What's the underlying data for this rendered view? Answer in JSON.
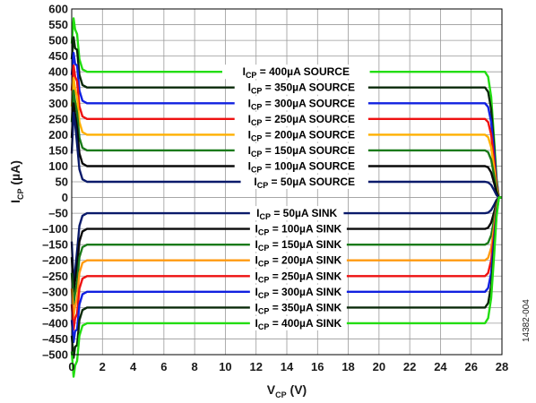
{
  "figure_id": "14382-004",
  "chart_data": {
    "type": "line",
    "xlabel": {
      "main": "V",
      "sub": "CP",
      "unit": " (V)"
    },
    "ylabel": {
      "main": "I",
      "sub": "CP",
      "unit": " (µA)"
    },
    "xlim": [
      0,
      28
    ],
    "ylim": [
      -500,
      600
    ],
    "xticks": [
      0,
      2,
      4,
      6,
      8,
      10,
      12,
      14,
      16,
      18,
      20,
      22,
      24,
      26,
      28
    ],
    "yticks": [
      600,
      550,
      500,
      450,
      400,
      350,
      300,
      250,
      200,
      150,
      100,
      50,
      0,
      -50,
      -100,
      -150,
      -200,
      -250,
      -300,
      -350,
      -400,
      -450,
      -500
    ],
    "ytick_labels": [
      "600",
      "550",
      "500",
      "450",
      "400",
      "350",
      "300",
      "250",
      "200",
      "150",
      "100",
      "50",
      "0",
      "–50",
      "–100",
      "–150",
      "–200",
      "–250",
      "–300",
      "–350",
      "–400",
      "–450",
      "–500"
    ],
    "grid": true,
    "series": [
      {
        "name": "ICP = 400µA SOURCE",
        "label_main": "I",
        "label_sub": "CP",
        "label_rest": " = 400µA SOURCE",
        "color": "#22dd11",
        "level": 400,
        "peak": 570,
        "label_x": [
          9.8,
          19.4
        ]
      },
      {
        "name": "ICP = 350µA SOURCE",
        "label_main": "I",
        "label_sub": "CP",
        "label_rest": " = 350µA SOURCE",
        "color": "#0a2a0a",
        "level": 350,
        "peak": 510,
        "label_x": [
          10.6,
          19.3
        ]
      },
      {
        "name": "ICP = 300µA SOURCE",
        "label_main": "I",
        "label_sub": "CP",
        "label_rest": " = 300µA SOURCE",
        "color": "#1020e0",
        "level": 300,
        "peak": 460,
        "label_x": [
          10.6,
          19.3
        ]
      },
      {
        "name": "ICP = 250µA SOURCE",
        "label_main": "I",
        "label_sub": "CP",
        "label_rest": " = 250µA SOURCE",
        "color": "#ee1111",
        "level": 250,
        "peak": 420,
        "label_x": [
          10.6,
          19.3
        ]
      },
      {
        "name": "ICP = 200µA SOURCE",
        "label_main": "I",
        "label_sub": "CP",
        "label_rest": " = 200µA SOURCE",
        "color": "#ffb000",
        "level": 200,
        "peak": 380,
        "label_x": [
          10.6,
          19.3
        ]
      },
      {
        "name": "ICP = 150µA SOURCE",
        "label_main": "I",
        "label_sub": "CP",
        "label_rest": " = 150µA SOURCE",
        "color": "#1a7a1a",
        "level": 150,
        "peak": 340,
        "label_x": [
          10.6,
          19.3
        ]
      },
      {
        "name": "ICP = 100µA SOURCE",
        "label_main": "I",
        "label_sub": "CP",
        "label_rest": " = 100µA SOURCE",
        "color": "#0a0a0a",
        "level": 100,
        "peak": 300,
        "label_x": [
          10.6,
          19.3
        ]
      },
      {
        "name": "ICP = 50µA SOURCE",
        "label_main": "I",
        "label_sub": "CP",
        "label_rest": " = 50µA SOURCE",
        "color": "#0a1a6a",
        "level": 50,
        "peak": 270,
        "label_x": [
          11.0,
          19.3
        ]
      },
      {
        "name": "ICP = 50µA SINK",
        "label_main": "I",
        "label_sub": "CP",
        "label_rest": " = 50µA SINK",
        "color": "#0a1a6a",
        "level": -50,
        "peak": 270,
        "label_x": [
          11.6,
          17.7
        ]
      },
      {
        "name": "ICP = 100µA SINK",
        "label_main": "I",
        "label_sub": "CP",
        "label_rest": " = 100µA SINK",
        "color": "#0a0a0a",
        "level": -100,
        "peak": 300,
        "label_x": [
          11.6,
          17.9
        ]
      },
      {
        "name": "ICP = 150µA SINK",
        "label_main": "I",
        "label_sub": "CP",
        "label_rest": " = 150µA SINK",
        "color": "#1a7a1a",
        "level": -150,
        "peak": 340,
        "label_x": [
          11.6,
          17.9
        ]
      },
      {
        "name": "ICP = 200µA SINK",
        "label_main": "I",
        "label_sub": "CP",
        "label_rest": " = 200µA SINK",
        "color": "#ff9a10",
        "level": -200,
        "peak": 380,
        "label_x": [
          11.6,
          17.9
        ]
      },
      {
        "name": "ICP = 250µA SINK",
        "label_main": "I",
        "label_sub": "CP",
        "label_rest": " = 250µA SINK",
        "color": "#ee1111",
        "level": -250,
        "peak": 420,
        "label_x": [
          11.6,
          17.9
        ]
      },
      {
        "name": "ICP = 300µA SINK",
        "label_main": "I",
        "label_sub": "CP",
        "label_rest": " = 300µA SINK",
        "color": "#1020e0",
        "level": -300,
        "peak": 460,
        "label_x": [
          11.6,
          17.9
        ]
      },
      {
        "name": "ICP = 350µA SINK",
        "label_main": "I",
        "label_sub": "CP",
        "label_rest": " = 350µA SINK",
        "color": "#0a2a0a",
        "level": -350,
        "peak": 510,
        "label_x": [
          11.6,
          17.9
        ]
      },
      {
        "name": "ICP = 400µA SINK",
        "label_main": "I",
        "label_sub": "CP",
        "label_rest": " = 400µA SINK",
        "color": "#22dd11",
        "level": -400,
        "peak": 570,
        "label_x": [
          11.6,
          17.9
        ]
      }
    ]
  }
}
